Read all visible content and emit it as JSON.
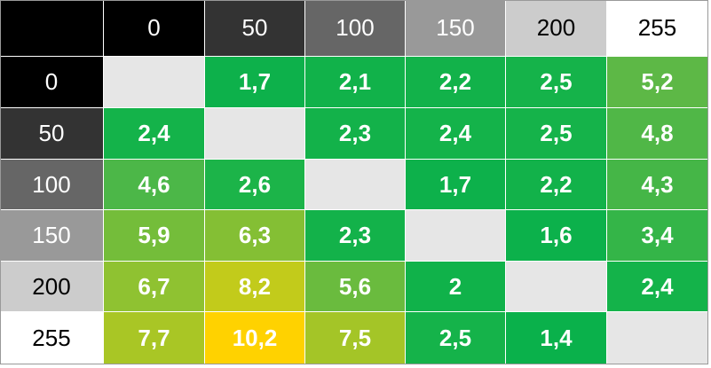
{
  "table": {
    "corner_color": "#000000",
    "column_headers": [
      "0",
      "50",
      "100",
      "150",
      "200",
      "255"
    ],
    "row_headers": [
      "0",
      "50",
      "100",
      "150",
      "200",
      "255"
    ],
    "header_colors": [
      "#000000",
      "#333333",
      "#666666",
      "#999999",
      "#cccccc",
      "#ffffff"
    ],
    "header_text_colors": [
      "#ffffff",
      "#ffffff",
      "#ffffff",
      "#ffffff",
      "#000000",
      "#000000"
    ],
    "rows": [
      [
        null,
        "1,7",
        "2,1",
        "2,2",
        "2,5",
        "5,2"
      ],
      [
        "2,4",
        null,
        "2,3",
        "2,4",
        "2,5",
        "4,8"
      ],
      [
        "4,6",
        "2,6",
        null,
        "1,7",
        "2,2",
        "4,3"
      ],
      [
        "5,9",
        "6,3",
        "2,3",
        null,
        "1,6",
        "3,4"
      ],
      [
        "6,7",
        "8,2",
        "5,6",
        "2",
        null,
        "2,4"
      ],
      [
        "7,7",
        "10,2",
        "7,5",
        "2,5",
        "1,4",
        null
      ]
    ],
    "cell_colors": [
      [
        "#e6e6e6",
        "#0db14b",
        "#11b24a",
        "#12b24a",
        "#15b34a",
        "#5db846"
      ],
      [
        "#14b34a",
        "#e6e6e6",
        "#13b24a",
        "#14b34a",
        "#15b34a",
        "#50b747"
      ],
      [
        "#4cb748",
        "#1cb449",
        "#e6e6e6",
        "#0db14b",
        "#12b24a",
        "#45b647"
      ],
      [
        "#74bd3a",
        "#84bf34",
        "#13b24a",
        "#e6e6e6",
        "#0cb14b",
        "#34b548"
      ],
      [
        "#8fc231",
        "#c2cb1b",
        "#6abb3e",
        "#10b24a",
        "#e6e6e6",
        "#14b34a"
      ],
      [
        "#a9c625",
        "#ffd200",
        "#a4c527",
        "#15b34a",
        "#0ab14b",
        "#e6e6e6"
      ]
    ]
  }
}
